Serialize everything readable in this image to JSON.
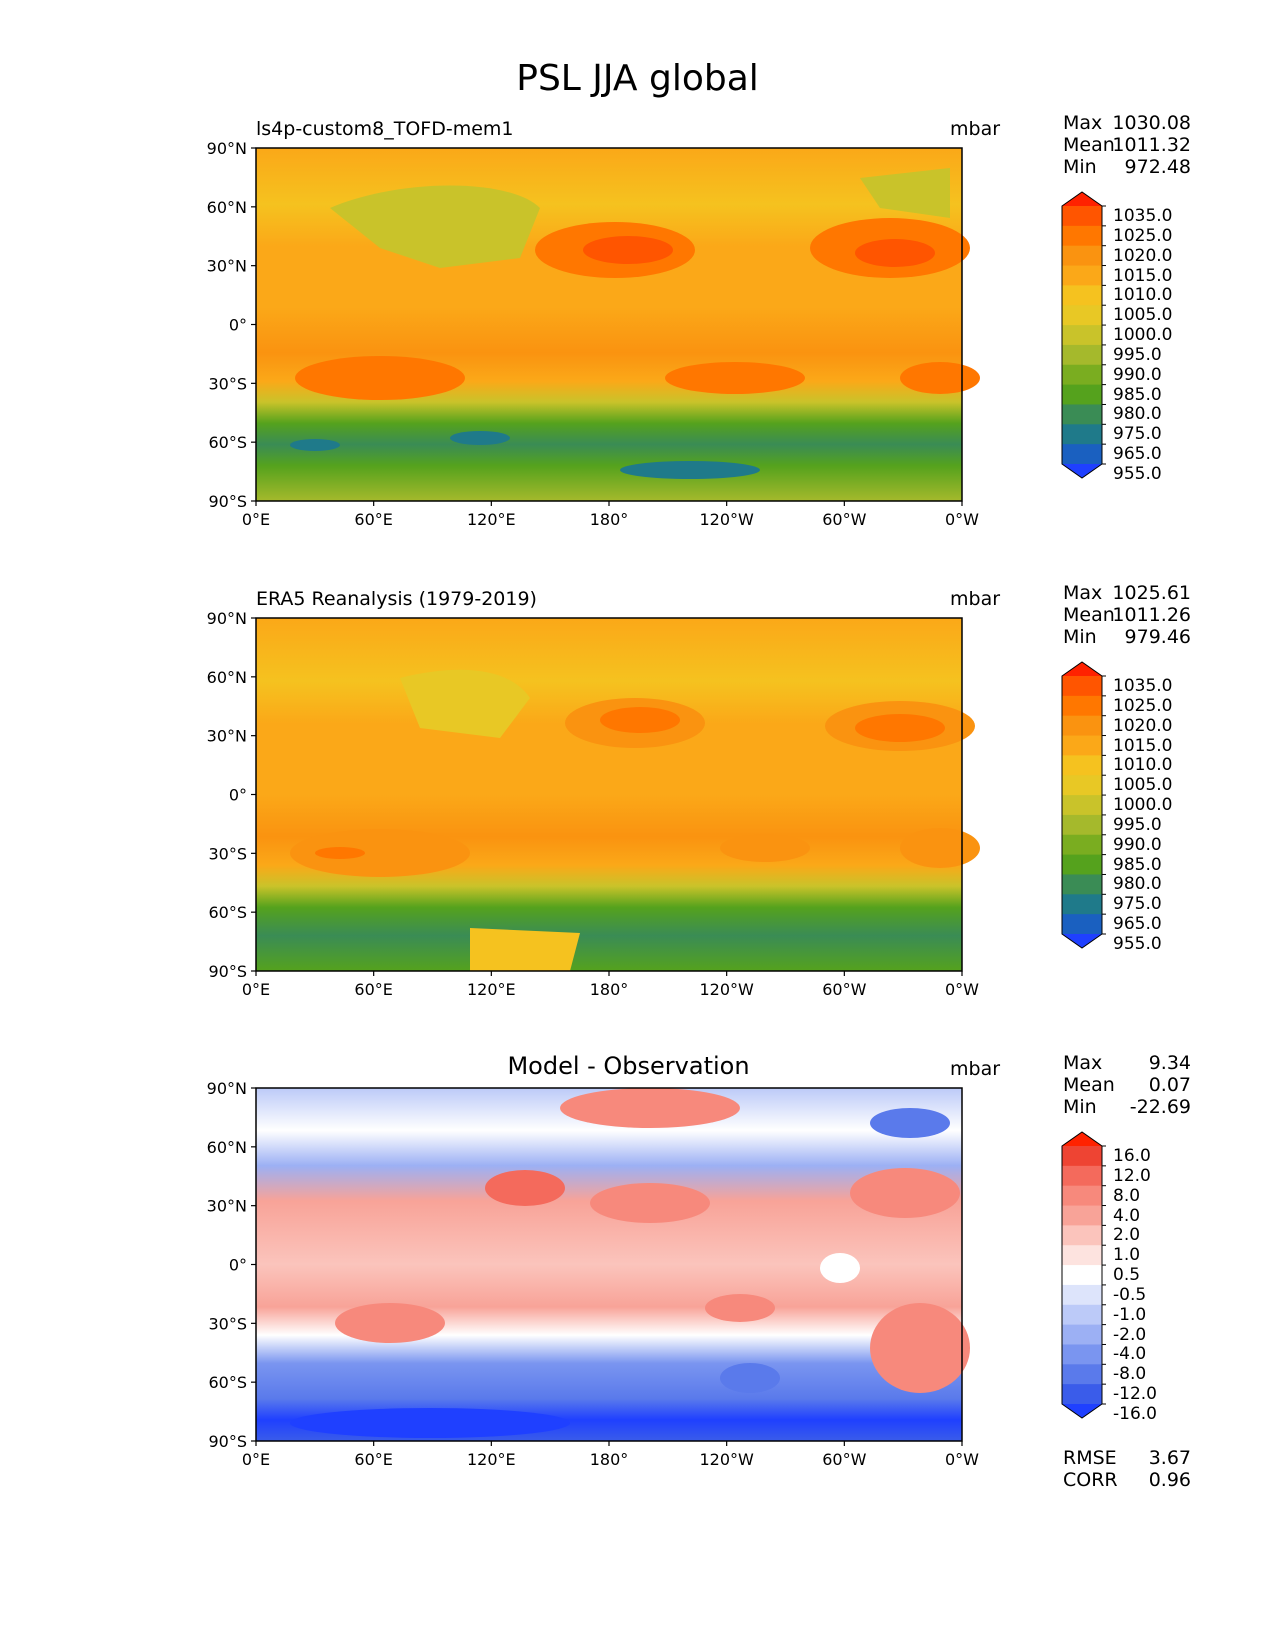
{
  "figure": {
    "title": "PSL JJA global"
  },
  "axes": {
    "lat_ticks": [
      "90°N",
      "60°N",
      "30°N",
      "0°",
      "30°S",
      "60°S",
      "90°S"
    ],
    "lon_ticks": [
      "0°E",
      "60°E",
      "120°E",
      "180°",
      "120°W",
      "60°W",
      "0°W"
    ]
  },
  "panels": [
    {
      "title": "ls4p-custom8_TOFD-mem1",
      "units": "mbar",
      "stats": [
        {
          "label": "Max",
          "value": "1030.08"
        },
        {
          "label": "Mean",
          "value": "1011.32"
        },
        {
          "label": "Min",
          "value": "972.48"
        }
      ],
      "colorbar": [
        "1035.0",
        "1025.0",
        "1020.0",
        "1015.0",
        "1010.0",
        "1005.0",
        "1000.0",
        "995.0",
        "990.0",
        "985.0",
        "980.0",
        "975.0",
        "965.0",
        "955.0"
      ]
    },
    {
      "title": "ERA5 Reanalysis (1979-2019)",
      "units": "mbar",
      "stats": [
        {
          "label": "Max",
          "value": "1025.61"
        },
        {
          "label": "Mean",
          "value": "1011.26"
        },
        {
          "label": "Min",
          "value": "979.46"
        }
      ],
      "colorbar": [
        "1035.0",
        "1025.0",
        "1020.0",
        "1015.0",
        "1010.0",
        "1005.0",
        "1000.0",
        "995.0",
        "990.0",
        "985.0",
        "980.0",
        "975.0",
        "965.0",
        "955.0"
      ]
    },
    {
      "title": "Model - Observation",
      "units": "mbar",
      "stats": [
        {
          "label": "Max",
          "value": "9.34"
        },
        {
          "label": "Mean",
          "value": "0.07"
        },
        {
          "label": "Min",
          "value": "-22.69"
        }
      ],
      "colorbar": [
        "16.0",
        "12.0",
        "8.0",
        "4.0",
        "2.0",
        "1.0",
        "0.5",
        "-0.5",
        "-1.0",
        "-2.0",
        "-4.0",
        "-8.0",
        "-12.0",
        "-16.0"
      ],
      "metrics": [
        {
          "label": "RMSE",
          "value": "3.67"
        },
        {
          "label": "CORR",
          "value": "0.96"
        }
      ]
    }
  ],
  "colors": {
    "psl_fill": [
      "#ff2200",
      "#ff5500",
      "#ff7700",
      "#fa9310",
      "#fba818",
      "#f5c21f",
      "#e8c825",
      "#c9c32a",
      "#a5b92c",
      "#7aad20",
      "#55a21d",
      "#3a8c55",
      "#1f7a8a",
      "#1a60c0",
      "#1f40ff"
    ],
    "diff_fill": [
      "#ff2200",
      "#ee4433",
      "#f46a5c",
      "#f7897c",
      "#f8a398",
      "#fbc4bc",
      "#fde3df",
      "#ffffff",
      "#dde4fb",
      "#bccaf8",
      "#9cb0f4",
      "#7a95f0",
      "#5a7aeb",
      "#3a5cea",
      "#1f40ff"
    ]
  }
}
